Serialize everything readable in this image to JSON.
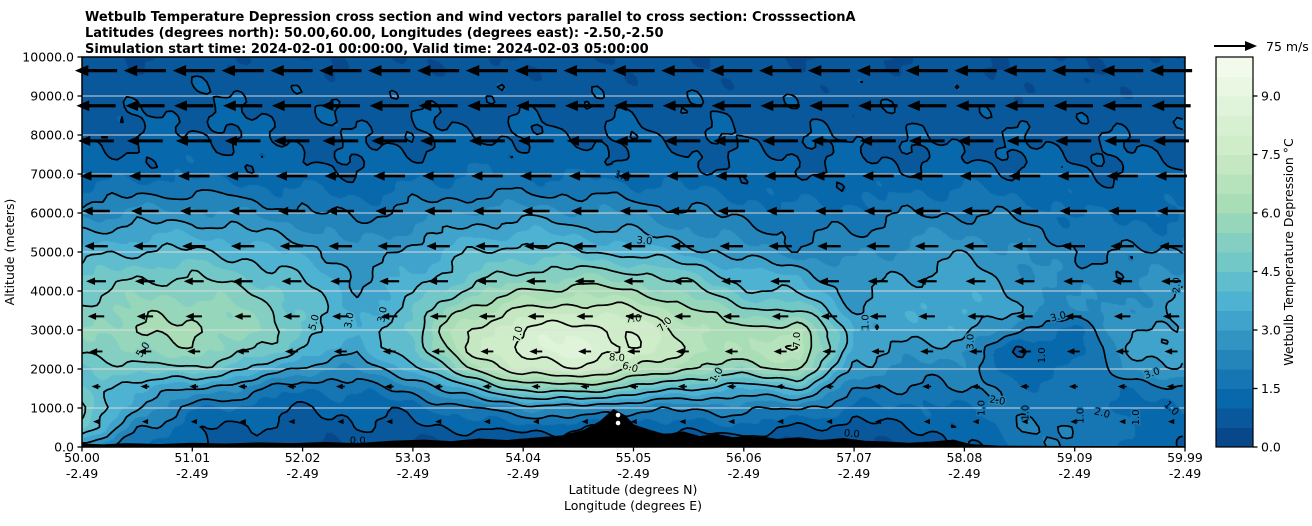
{
  "chart_data": {
    "type": "filled_contour_cross_section_with_quiver",
    "title_lines": [
      "Wetbulb Temperature Depression cross section and wind vectors parallel to cross section: CrosssectionA",
      "Latitudes (degrees north): 50.00,60.00, Longitudes (degrees east): -2.50,-2.50",
      "Simulation start time: 2024-02-01 00:00:00, Valid time: 2024-02-03 05:00:00"
    ],
    "x_axis": {
      "label_lines": [
        "Latitude (degrees N)",
        "Longitude (degrees E)"
      ],
      "ticks": [
        {
          "lat": "50.00",
          "lon": "-2.49"
        },
        {
          "lat": "51.01",
          "lon": "-2.49"
        },
        {
          "lat": "52.02",
          "lon": "-2.49"
        },
        {
          "lat": "53.03",
          "lon": "-2.49"
        },
        {
          "lat": "54.04",
          "lon": "-2.49"
        },
        {
          "lat": "55.05",
          "lon": "-2.49"
        },
        {
          "lat": "56.06",
          "lon": "-2.49"
        },
        {
          "lat": "57.07",
          "lon": "-2.49"
        },
        {
          "lat": "58.08",
          "lon": "-2.49"
        },
        {
          "lat": "59.09",
          "lon": "-2.49"
        },
        {
          "lat": "59.99",
          "lon": "-2.49"
        }
      ],
      "range_lat": [
        50.0,
        60.0
      ]
    },
    "y_axis": {
      "label": "Altitude (meters)",
      "ticks": [
        "0.0",
        "1000.0",
        "2000.0",
        "3000.0",
        "4000.0",
        "5000.0",
        "6000.0",
        "7000.0",
        "8000.0",
        "9000.0",
        "10000.0"
      ],
      "range_m": [
        0,
        10000
      ],
      "grid": "white horizontal lines every 1000 m"
    },
    "colorbar": {
      "label": "Wetbulb Temperature Depression °C",
      "ticks": [
        "0.0",
        "1.5",
        "3.0",
        "4.5",
        "6.0",
        "7.5",
        "9.0"
      ],
      "vmin": 0,
      "vmax": 10,
      "band_step": 0.5,
      "colormap": "GnBu_r",
      "colormap_stops": [
        [
          0.0,
          "#084081"
        ],
        [
          0.125,
          "#0868ac"
        ],
        [
          0.25,
          "#2b8cbe"
        ],
        [
          0.375,
          "#4eb3d3"
        ],
        [
          0.5,
          "#7bccc4"
        ],
        [
          0.625,
          "#a8ddb5"
        ],
        [
          0.75,
          "#ccebc5"
        ],
        [
          0.875,
          "#e0f3db"
        ],
        [
          1.0,
          "#f7fcf0"
        ]
      ]
    },
    "wind": {
      "legend_label": "75 m/s",
      "reference_speed_ms": 75,
      "direction": "toward_lower_latitude",
      "columns": 23,
      "rows": [
        {
          "alt": 9650,
          "speed": 72
        },
        {
          "alt": 8750,
          "speed": 67
        },
        {
          "alt": 7850,
          "speed": 61
        },
        {
          "alt": 6950,
          "speed": 54
        },
        {
          "alt": 6050,
          "speed": 47
        },
        {
          "alt": 5150,
          "speed": 40
        },
        {
          "alt": 4250,
          "speed": 34
        },
        {
          "alt": 3350,
          "speed": 28
        },
        {
          "alt": 2450,
          "speed": 22
        },
        {
          "alt": 1550,
          "speed": 15
        },
        {
          "alt": 650,
          "speed": 10
        }
      ]
    },
    "field": {
      "units": "degC",
      "lats": [
        50,
        50.5,
        51,
        51.5,
        52,
        52.5,
        53,
        53.5,
        54,
        54.5,
        55,
        55.5,
        56,
        56.5,
        57,
        57.5,
        58,
        58.5,
        59,
        59.5,
        60
      ],
      "alts_top_to_bottom": [
        10000,
        9500,
        9000,
        8500,
        8000,
        7500,
        7000,
        6500,
        6000,
        5500,
        5000,
        4500,
        4000,
        3500,
        3000,
        2500,
        2000,
        1500,
        1000,
        500,
        0
      ],
      "values": [
        [
          0.6,
          0.6,
          0.6,
          0.6,
          0.6,
          0.6,
          0.6,
          0.6,
          0.6,
          0.6,
          0.6,
          0.6,
          0.6,
          0.6,
          0.6,
          0.6,
          0.6,
          0.6,
          0.6,
          0.6,
          0.6
        ],
        [
          0.6,
          0.7,
          0.8,
          0.8,
          0.7,
          0.7,
          0.7,
          0.7,
          0.7,
          0.7,
          0.7,
          0.7,
          0.7,
          0.7,
          0.7,
          0.7,
          0.7,
          0.7,
          0.7,
          0.7,
          0.7
        ],
        [
          0.7,
          0.8,
          0.9,
          0.9,
          0.8,
          0.8,
          0.8,
          0.8,
          0.8,
          0.8,
          0.8,
          0.8,
          0.8,
          0.8,
          0.8,
          0.8,
          0.8,
          0.7,
          0.7,
          0.7,
          0.7
        ],
        [
          0.8,
          0.9,
          1.0,
          1.0,
          0.9,
          0.9,
          0.9,
          0.9,
          0.9,
          0.9,
          0.9,
          0.9,
          0.9,
          0.8,
          0.8,
          0.8,
          0.8,
          0.8,
          0.8,
          0.8,
          0.8
        ],
        [
          0.9,
          1.0,
          1.1,
          1.0,
          0.9,
          0.9,
          1.0,
          1.0,
          1.0,
          1.0,
          1.0,
          0.9,
          0.9,
          0.9,
          0.9,
          0.9,
          0.9,
          0.9,
          0.9,
          0.9,
          0.9
        ],
        [
          1.0,
          1.1,
          1.2,
          1.1,
          1.0,
          1.0,
          1.1,
          1.2,
          1.2,
          1.1,
          1.1,
          1.0,
          1.0,
          1.0,
          1.0,
          1.0,
          1.0,
          1.0,
          1.0,
          1.0,
          1.0
        ],
        [
          1.2,
          1.3,
          1.4,
          1.3,
          1.2,
          1.1,
          1.3,
          1.5,
          1.5,
          1.4,
          1.3,
          1.2,
          1.1,
          1.1,
          1.1,
          1.1,
          1.2,
          1.1,
          1.1,
          1.1,
          1.1
        ],
        [
          1.7,
          1.9,
          2.0,
          1.8,
          1.6,
          1.4,
          1.7,
          1.9,
          2.0,
          1.9,
          1.8,
          1.6,
          1.4,
          1.3,
          1.3,
          1.5,
          1.6,
          1.4,
          1.2,
          1.2,
          1.2
        ],
        [
          2.3,
          2.6,
          2.7,
          2.4,
          2.1,
          1.8,
          2.2,
          2.6,
          2.8,
          2.6,
          2.4,
          2.1,
          1.8,
          1.6,
          1.7,
          1.9,
          2.0,
          1.8,
          1.5,
          1.4,
          1.5
        ],
        [
          3.0,
          3.3,
          3.4,
          3.1,
          2.7,
          2.2,
          2.7,
          3.2,
          3.5,
          3.3,
          3.0,
          2.6,
          2.2,
          1.9,
          2.0,
          2.3,
          2.5,
          2.2,
          1.8,
          1.6,
          1.8
        ],
        [
          3.7,
          4.0,
          4.1,
          3.8,
          3.3,
          2.6,
          3.2,
          3.9,
          4.3,
          4.1,
          3.8,
          3.3,
          2.7,
          2.2,
          2.3,
          2.7,
          2.9,
          2.5,
          2.0,
          1.9,
          2.2
        ],
        [
          4.3,
          4.7,
          4.8,
          4.4,
          3.8,
          2.9,
          3.4,
          4.4,
          5.0,
          5.2,
          5.0,
          4.4,
          3.6,
          3.2,
          2.6,
          3.0,
          3.2,
          2.7,
          2.2,
          2.2,
          2.6
        ],
        [
          4.8,
          5.3,
          5.4,
          5.0,
          4.2,
          3.1,
          3.9,
          5.2,
          6.0,
          6.3,
          6.0,
          5.3,
          4.2,
          3.8,
          2.8,
          3.2,
          3.4,
          2.8,
          2.3,
          2.4,
          2.9
        ],
        [
          5.2,
          5.7,
          5.9,
          5.4,
          4.5,
          3.2,
          4.4,
          6.2,
          7.1,
          7.4,
          7.1,
          6.2,
          5.2,
          5.0,
          3.0,
          3.3,
          3.5,
          2.9,
          2.4,
          2.6,
          3.1
        ],
        [
          5.4,
          6.0,
          6.1,
          5.6,
          4.6,
          3.4,
          4.8,
          7.0,
          8.1,
          8.4,
          7.9,
          6.8,
          6.0,
          6.6,
          3.4,
          3.2,
          3.4,
          2.0,
          1.4,
          2.9,
          3.3
        ],
        [
          5.0,
          5.7,
          5.8,
          5.2,
          4.0,
          3.2,
          4.6,
          7.0,
          8.4,
          8.7,
          8.0,
          6.9,
          6.4,
          7.2,
          3.2,
          2.9,
          2.6,
          0.9,
          1.2,
          3.0,
          3.4
        ],
        [
          4.4,
          4.8,
          4.9,
          4.1,
          2.7,
          2.5,
          3.6,
          5.9,
          7.6,
          7.9,
          7.0,
          6.0,
          5.6,
          6.2,
          2.8,
          2.4,
          2.2,
          1.1,
          1.5,
          2.6,
          2.9
        ],
        [
          4.6,
          3.4,
          3.1,
          2.3,
          1.5,
          1.7,
          2.2,
          3.8,
          5.3,
          5.6,
          4.7,
          4.0,
          3.5,
          4.0,
          2.0,
          1.9,
          2.1,
          1.7,
          1.7,
          1.7,
          1.9
        ],
        [
          5.2,
          3.0,
          1.7,
          1.3,
          1.0,
          1.1,
          1.2,
          1.9,
          2.5,
          2.7,
          2.2,
          2.1,
          2.2,
          2.0,
          1.5,
          1.3,
          1.5,
          1.8,
          1.8,
          1.3,
          1.5
        ],
        [
          4.7,
          2.2,
          1.1,
          0.9,
          0.8,
          0.9,
          0.9,
          1.1,
          1.3,
          1.1,
          1.0,
          1.3,
          1.3,
          1.0,
          0.8,
          1.0,
          1.1,
          1.9,
          2.1,
          1.5,
          1.3
        ],
        [
          2.4,
          1.5,
          0.9,
          0.7,
          0.6,
          0.5,
          0.3,
          0.3,
          0.25,
          0.25,
          0.3,
          0.3,
          0.35,
          0.4,
          0.35,
          0.5,
          0.9,
          1.7,
          1.9,
          1.3,
          1.1
        ]
      ]
    },
    "contour_levels": [
      0,
      1,
      2,
      3,
      4,
      5,
      6,
      7,
      8,
      9
    ],
    "contour_labels": [
      {
        "text": "5.0",
        "lat": 50.55,
        "alt": 2500,
        "rot": -55
      },
      {
        "text": "5.0",
        "lat": 52.1,
        "alt": 3200,
        "rot": -75
      },
      {
        "text": "3.0",
        "lat": 52.42,
        "alt": 3250,
        "rot": -80
      },
      {
        "text": "3.0",
        "lat": 52.72,
        "alt": 3400,
        "rot": -80
      },
      {
        "text": "1.0",
        "lat": 54.9,
        "alt": 6950,
        "rot": 20
      },
      {
        "text": "3.0",
        "lat": 55.1,
        "alt": 5300,
        "rot": 5
      },
      {
        "text": "7.0",
        "lat": 53.95,
        "alt": 2900,
        "rot": -80
      },
      {
        "text": "7.0",
        "lat": 55.0,
        "alt": 3300,
        "rot": -5
      },
      {
        "text": "7.0",
        "lat": 55.28,
        "alt": 3150,
        "rot": -45
      },
      {
        "text": "8.0",
        "lat": 54.85,
        "alt": 2300,
        "rot": 5
      },
      {
        "text": "6.0",
        "lat": 54.97,
        "alt": 2050,
        "rot": 15
      },
      {
        "text": "7.0",
        "lat": 56.48,
        "alt": 2750,
        "rot": -90
      },
      {
        "text": "1.0",
        "lat": 57.1,
        "alt": 3200,
        "rot": -90
      },
      {
        "text": "3.0",
        "lat": 58.05,
        "alt": 2700,
        "rot": -90
      },
      {
        "text": "3.0",
        "lat": 58.85,
        "alt": 3350,
        "rot": -15
      },
      {
        "text": "1.0",
        "lat": 58.7,
        "alt": 2350,
        "rot": -90
      },
      {
        "text": "2.0",
        "lat": 59.92,
        "alt": 4150,
        "rot": -90
      },
      {
        "text": "3.0",
        "lat": 59.7,
        "alt": 1900,
        "rot": -20
      },
      {
        "text": "1.0",
        "lat": 58.15,
        "alt": 1000,
        "rot": -90
      },
      {
        "text": "2.0",
        "lat": 58.3,
        "alt": 1200,
        "rot": 10
      },
      {
        "text": "1.0",
        "lat": 58.55,
        "alt": 880,
        "rot": -90
      },
      {
        "text": "1.0",
        "lat": 59.05,
        "alt": 800,
        "rot": -90
      },
      {
        "text": "2.0",
        "lat": 59.25,
        "alt": 880,
        "rot": 15
      },
      {
        "text": "1.0",
        "lat": 59.55,
        "alt": 760,
        "rot": -90
      },
      {
        "text": "1.0",
        "lat": 59.88,
        "alt": 1000,
        "rot": 45
      },
      {
        "text": "1.0",
        "lat": 55.75,
        "alt": 1850,
        "rot": -60
      },
      {
        "text": "0.0",
        "lat": 56.98,
        "alt": 350,
        "rot": 5
      },
      {
        "text": "0.0",
        "lat": 52.5,
        "alt": 180,
        "rot": 0
      }
    ],
    "terrain_profile": [
      [
        50,
        70
      ],
      [
        50.2,
        50
      ],
      [
        50.4,
        80
      ],
      [
        50.7,
        60
      ],
      [
        51,
        90
      ],
      [
        51.3,
        70
      ],
      [
        51.6,
        100
      ],
      [
        51.9,
        80
      ],
      [
        52.2,
        110
      ],
      [
        52.5,
        80
      ],
      [
        52.8,
        140
      ],
      [
        53.1,
        170
      ],
      [
        53.35,
        130
      ],
      [
        53.6,
        200
      ],
      [
        53.85,
        160
      ],
      [
        54.1,
        220
      ],
      [
        54.35,
        280
      ],
      [
        54.55,
        420
      ],
      [
        54.7,
        650
      ],
      [
        54.82,
        950
      ],
      [
        54.92,
        800
      ],
      [
        55.0,
        560
      ],
      [
        55.15,
        420
      ],
      [
        55.3,
        300
      ],
      [
        55.45,
        380
      ],
      [
        55.6,
        260
      ],
      [
        55.75,
        320
      ],
      [
        55.9,
        230
      ],
      [
        56.1,
        280
      ],
      [
        56.3,
        190
      ],
      [
        56.5,
        230
      ],
      [
        56.7,
        160
      ],
      [
        56.9,
        210
      ],
      [
        57.1,
        140
      ],
      [
        57.3,
        120
      ],
      [
        57.5,
        90
      ],
      [
        57.7,
        120
      ],
      [
        57.9,
        170
      ],
      [
        58.05,
        60
      ],
      [
        58.3,
        15
      ],
      [
        59.0,
        8
      ],
      [
        60,
        5
      ]
    ],
    "summit_marker": {
      "lat": 54.86,
      "alts": [
        820,
        615
      ]
    }
  }
}
